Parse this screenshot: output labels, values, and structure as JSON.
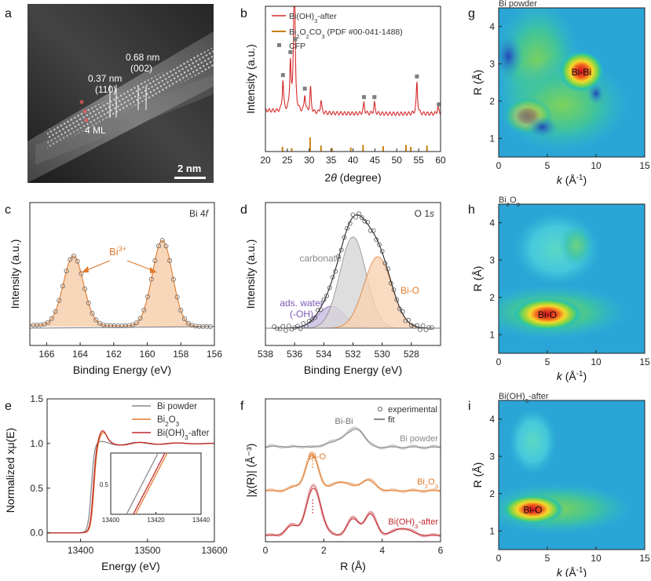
{
  "panels": {
    "a": "a",
    "b": "b",
    "c": "c",
    "d": "d",
    "e": "e",
    "f": "f",
    "g": "g",
    "h": "h",
    "i": "i"
  },
  "image_a": {
    "scale_bar": "2 nm",
    "ann1_val": "0.37 nm",
    "ann1_plane": "(110)",
    "ann2_val": "0.68 nm",
    "ann2_plane": "(002)",
    "ann3": "4 ML"
  },
  "chart_data": [
    {
      "id": "b",
      "type": "line",
      "xlabel_prefix": "2",
      "xlabel_theta": "θ",
      "xlabel_suffix": " (degree)",
      "ylabel": "Intensity (a.u.)",
      "xlim": [
        20,
        60
      ],
      "xticks": [
        "20",
        "25",
        "30",
        "35",
        "40",
        "45",
        "50",
        "55",
        "60"
      ],
      "legend": [
        "Bi(OH)3-after",
        "Bi2O2CO3 (PDF #00-041-1488)",
        "CFP"
      ],
      "legend_display": {
        "l1_a": "Bi(OH)",
        "l1_sub": "3",
        "l1_b": "-after",
        "l2_a": "Bi",
        "l2_s1": "2",
        "l2_b": "O",
        "l2_s2": "2",
        "l2_c": "CO",
        "l2_s3": "3",
        "l2_d": " (PDF #00-041-1488)",
        "l3": "CFP"
      },
      "colors": {
        "trace": "#d62a2a",
        "ref": "#c9800f",
        "cfp": "#7f7f7f"
      },
      "peaks": [
        {
          "x": 24.0,
          "h": 0.18
        },
        {
          "x": 25.7,
          "h": 0.28
        },
        {
          "x": 26.6,
          "h": 1.0
        },
        {
          "x": 29.0,
          "h": 0.1
        },
        {
          "x": 30.3,
          "h": 0.14
        },
        {
          "x": 32.7,
          "h": 0.07
        },
        {
          "x": 42.5,
          "h": 0.06
        },
        {
          "x": 44.9,
          "h": 0.06
        },
        {
          "x": 54.6,
          "h": 0.18
        },
        {
          "x": 59.4,
          "h": 0.04
        }
      ],
      "cfp_marks": [
        24.0,
        25.7,
        26.8,
        29.0,
        42.5,
        44.9,
        54.6,
        59.6
      ],
      "ref_lines": [
        {
          "x": 23.9,
          "h": 0.25
        },
        {
          "x": 26.0,
          "h": 0.15
        },
        {
          "x": 30.2,
          "h": 1.0
        },
        {
          "x": 32.7,
          "h": 0.35
        },
        {
          "x": 35.2,
          "h": 0.15
        },
        {
          "x": 39.5,
          "h": 0.2
        },
        {
          "x": 42.3,
          "h": 0.4
        },
        {
          "x": 46.9,
          "h": 0.3
        },
        {
          "x": 52.1,
          "h": 0.4
        },
        {
          "x": 53.2,
          "h": 0.25
        },
        {
          "x": 56.9,
          "h": 0.35
        }
      ]
    },
    {
      "id": "c",
      "type": "line",
      "title": "Bi 4",
      "title_italic": "f",
      "xlabel": "Binding Energy (eV)",
      "ylabel": "Intensity (a.u.)",
      "xlim": [
        167,
        156
      ],
      "xticks": [
        "166",
        "164",
        "162",
        "160",
        "158",
        "156"
      ],
      "annotation_base": "Bi",
      "annotation_sup": "3+",
      "peaks": [
        {
          "center": 164.4,
          "height": 0.77,
          "sigma": 0.6
        },
        {
          "center": 159.1,
          "height": 0.95,
          "sigma": 0.6
        }
      ],
      "colors": {
        "fill": "#f6cfae",
        "edge": "#e07b2e",
        "marker": "#666666"
      }
    },
    {
      "id": "d",
      "type": "line",
      "title": "O 1",
      "title_italic": "s",
      "xlabel": "Binding Energy (eV)",
      "ylabel": "Intensity (a.u.)",
      "xlim": [
        538,
        526
      ],
      "xticks": [
        "538",
        "536",
        "534",
        "532",
        "530",
        "528"
      ],
      "components": [
        {
          "name": "ads. water",
          "name2": "(-OH)",
          "center": 533.5,
          "height": 0.2,
          "sigma": 0.9,
          "color": "#7d5ab8",
          "fill": "#c8bde2"
        },
        {
          "name": "carbonate",
          "center": 532.0,
          "height": 0.83,
          "sigma": 0.9,
          "color": "#888888",
          "fill": "#d7d7d7"
        },
        {
          "name": "Bi-O",
          "center": 530.3,
          "height": 0.65,
          "sigma": 0.95,
          "color": "#e07b2e",
          "fill": "#f8d3b3"
        }
      ]
    },
    {
      "id": "e",
      "type": "line",
      "xlabel": "Energy (eV)",
      "ylabel": "Normalized xμ(E)",
      "xlim": [
        13350,
        13600
      ],
      "ylim": [
        -0.1,
        1.5
      ],
      "xticks": [
        "13400",
        "13500",
        "13600"
      ],
      "yticks": [
        "0.0",
        "0.5",
        "1.0",
        "1.5"
      ],
      "series": [
        {
          "name": "Bi powder",
          "color": "#8a8a8a",
          "edge": 13416
        },
        {
          "name": "Bi2O3",
          "sub": "2",
          "sub2": "3",
          "color": "#e07b2e",
          "edge": 13420
        },
        {
          "name": "Bi(OH)3-after",
          "color": "#c0282d",
          "edge": 13419
        }
      ],
      "legend_display": {
        "s1": "Bi powder",
        "s2_a": "Bi",
        "s2_s1": "2",
        "s2_b": "O",
        "s2_s2": "3",
        "s3_a": "Bi(OH)",
        "s3_s": "3",
        "s3_b": "-after"
      },
      "inset": {
        "xlim": [
          13400,
          13440
        ],
        "xticks": [
          "13400",
          "13420",
          "13440"
        ],
        "ytick": "0.5"
      }
    },
    {
      "id": "f",
      "type": "line",
      "xlabel": "R (Å)",
      "ylabel": "|χ(R)| (Å⁻³)",
      "xlim": [
        0,
        6
      ],
      "xticks": [
        "0",
        "2",
        "4",
        "6"
      ],
      "legend": [
        "experimental",
        "fit"
      ],
      "labels": {
        "bibi": "Bi-Bi",
        "bio": "Bi-O",
        "s1": "Bi powder",
        "s2_a": "Bi",
        "s2_s1": "2",
        "s2_b": "O",
        "s2_s2": "3",
        "s3_a": "Bi(OH)",
        "s3_s": "3",
        "s3_b": "-after"
      },
      "colors": [
        "#8a8a8a",
        "#e07b2e",
        "#c0282d"
      ]
    },
    {
      "id": "g",
      "type": "heatmap",
      "title": "Bi powder",
      "xlabel_k": "k",
      "xlabel_unit": " (Å",
      "xlabel_sup": "-1",
      "xlabel_close": ")",
      "ylabel": "R (Å)",
      "xlim": [
        0,
        15
      ],
      "ylim": [
        0.5,
        4.5
      ],
      "xticks": [
        "0",
        "5",
        "10",
        "15"
      ],
      "yticks": [
        "1",
        "2",
        "3",
        "4"
      ],
      "label": "Bi-Bi"
    },
    {
      "id": "h",
      "type": "heatmap",
      "title_a": "Bi",
      "title_s1": "2",
      "title_b": "O",
      "title_s2": "3",
      "xlabel_k": "k",
      "xlabel_unit": " (Å",
      "xlabel_sup": "-1",
      "xlabel_close": ")",
      "ylabel": "R (Å)",
      "xlim": [
        0,
        15
      ],
      "ylim": [
        0.5,
        4.5
      ],
      "xticks": [
        "0",
        "5",
        "10",
        "15"
      ],
      "yticks": [
        "1",
        "2",
        "3",
        "4"
      ],
      "label": "Bi-O"
    },
    {
      "id": "i",
      "type": "heatmap",
      "title_a": "Bi(OH)",
      "title_s": "3",
      "title_b": "-after",
      "xlabel_k": "k",
      "xlabel_unit": " (Å",
      "xlabel_sup": "-1",
      "xlabel_close": ")",
      "ylabel": "R (Å)",
      "xlim": [
        0,
        15
      ],
      "ylim": [
        0.5,
        4.5
      ],
      "xticks": [
        "0",
        "5",
        "10",
        "15"
      ],
      "yticks": [
        "1",
        "2",
        "3",
        "4"
      ],
      "label": "Bi-O"
    }
  ]
}
